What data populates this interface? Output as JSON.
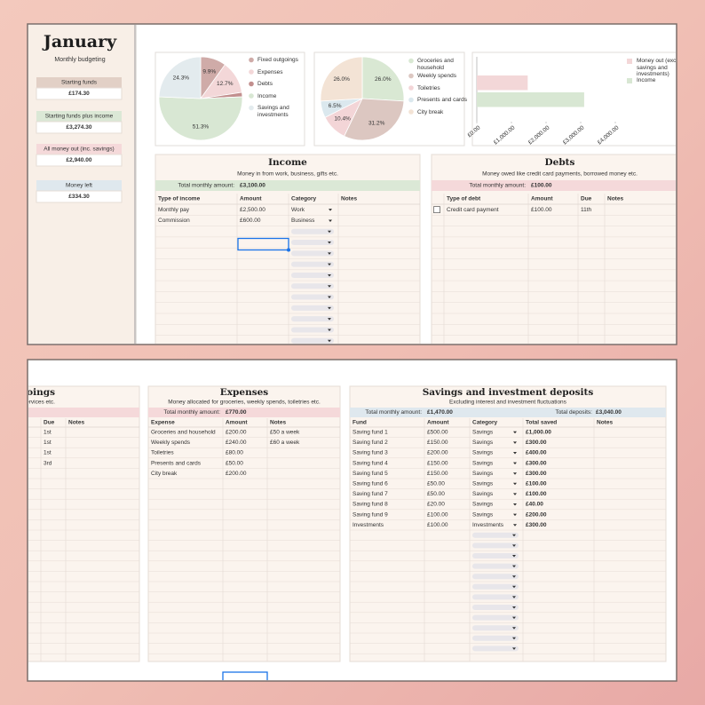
{
  "sidebar": {
    "title": "January",
    "subtitle": "Monthly budgeting",
    "boxes": [
      {
        "label": "Starting funds",
        "value": "£174.30"
      },
      {
        "label": "Starting funds plus income",
        "value": "£3,274.30"
      },
      {
        "label": "All money out (inc. savings)",
        "value": "£2,940.00"
      },
      {
        "label": "Money left",
        "value": "£334.30"
      }
    ]
  },
  "chart_data": [
    {
      "type": "pie",
      "categories": [
        "Fixed outgoings",
        "Expenses",
        "Debts",
        "Income",
        "Savings and investments"
      ],
      "values": [
        9.9,
        12.7,
        1.7,
        51.3,
        24.3
      ],
      "value_labels": [
        "9.9%",
        "12.7%",
        null,
        "51.3%",
        "24.3%"
      ],
      "colors": [
        "#cfaba8",
        "#f3d7d8",
        "#c28f8e",
        "#d8e7d3",
        "#e3ebee"
      ]
    },
    {
      "type": "pie",
      "categories": [
        "Groceries and household",
        "Weekly spends",
        "Toiletries",
        "Presents and cards",
        "City break"
      ],
      "values": [
        26.0,
        31.2,
        10.4,
        6.5,
        26.0
      ],
      "value_labels": [
        "26.0%",
        "31.2%",
        "10.4%",
        "6.5%",
        "26.0%"
      ],
      "colors": [
        "#d9e8d3",
        "#dcc7c1",
        "#f3d5d7",
        "#dbe8ee",
        "#f3e3d5"
      ]
    },
    {
      "type": "bar",
      "horizontal": true,
      "grid": false,
      "series": [
        {
          "name": "Money out (exc. savings and investments)",
          "color": "#f3d7d8",
          "values": [
            1470
          ]
        },
        {
          "name": "Income",
          "color": "#d8e7d3",
          "values": [
            3100
          ]
        }
      ],
      "xlim": [
        0,
        4000
      ],
      "xticks": [
        {
          "value": 0,
          "label": "£0.00"
        },
        {
          "value": 1000,
          "label": "£1,000.00"
        },
        {
          "value": 2000,
          "label": "£2,000.00"
        },
        {
          "value": 3000,
          "label": "£3,000.00"
        },
        {
          "value": 4000,
          "label": "£4,000.00"
        }
      ]
    }
  ],
  "tables": {
    "income": {
      "title": "Income",
      "subtitle": "Money in from work, business, gifts etc.",
      "total_label": "Total monthly amount:",
      "total": "£3,100.00",
      "columns": [
        "Type of income",
        "Amount",
        "Category",
        "Notes"
      ],
      "rows": [
        [
          "Monthly pay",
          "£2,500.00",
          "Work"
        ],
        [
          "Commission",
          "£600.00",
          "Business"
        ]
      ]
    },
    "debts": {
      "title": "Debts",
      "subtitle": "Money owed like credit card payments, borrowed money etc.",
      "total_label": "Total monthly amount:",
      "total": "£100.00",
      "columns": [
        "Type of debt",
        "Amount",
        "Due",
        "Notes"
      ],
      "rows": [
        [
          "Credit card payment",
          "£100.00",
          "11th"
        ]
      ]
    },
    "fixed": {
      "title": "goings",
      "subtitle": "reaming services etc.",
      "columns": [
        "Due",
        "Notes"
      ],
      "rows": [
        [
          "1st"
        ],
        [
          "1st"
        ],
        [
          "1st"
        ],
        [
          "3rd"
        ]
      ]
    },
    "expenses": {
      "title": "Expenses",
      "subtitle": "Money allocated for groceries, weekly spends, toiletries etc.",
      "total_label": "Total monthly amount:",
      "total": "£770.00",
      "columns": [
        "Expense",
        "Amount",
        "Notes"
      ],
      "rows": [
        [
          "Groceries and household",
          "£200.00",
          "£50 a week"
        ],
        [
          "Weekly spends",
          "£240.00",
          "£60 a week"
        ],
        [
          "Toiletries",
          "£80.00"
        ],
        [
          "Presents and cards",
          "£50.00"
        ],
        [
          "City break",
          "£200.00"
        ]
      ]
    },
    "savings": {
      "title": "Savings and investment deposits",
      "subtitle": "Excluding interest and investment fluctuations",
      "total_label": "Total monthly amount:",
      "total": "£1,470.00",
      "extra_label": "Total deposits:",
      "extra": "£3,040.00",
      "columns": [
        "Fund",
        "Amount",
        "Category",
        "Total saved",
        "Notes"
      ],
      "rows": [
        [
          "Saving fund 1",
          "£500.00",
          "Savings",
          "£1,000.00"
        ],
        [
          "Saving fund 2",
          "£150.00",
          "Savings",
          "£300.00"
        ],
        [
          "Saving fund 3",
          "£200.00",
          "Savings",
          "£400.00"
        ],
        [
          "Saving fund 4",
          "£150.00",
          "Savings",
          "£300.00"
        ],
        [
          "Saving fund 5",
          "£150.00",
          "Savings",
          "£300.00"
        ],
        [
          "Saving fund 6",
          "£50.00",
          "Savings",
          "£100.00"
        ],
        [
          "Saving fund 7",
          "£50.00",
          "Savings",
          "£100.00"
        ],
        [
          "Saving fund 8",
          "£20.00",
          "Savings",
          "£40.00"
        ],
        [
          "Saving fund 9",
          "£100.00",
          "Savings",
          "£200.00"
        ],
        [
          "Investments",
          "£100.00",
          "Investments",
          "£300.00"
        ]
      ]
    }
  }
}
